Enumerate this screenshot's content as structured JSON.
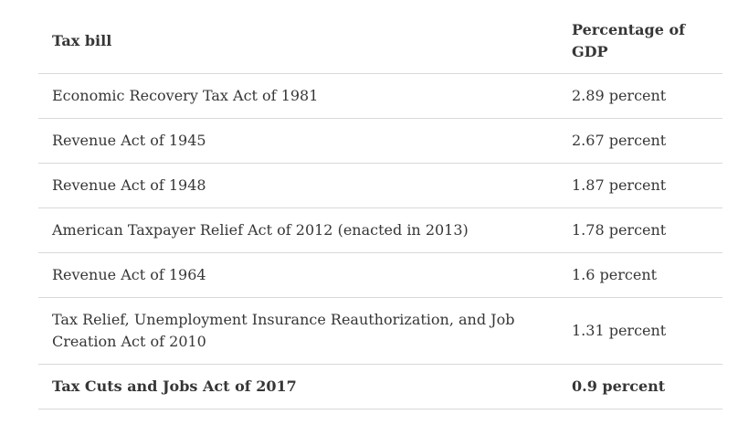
{
  "table": {
    "columns": [
      "Tax bill",
      "Percentage of GDP"
    ],
    "rows": [
      {
        "bill": "Economic Recovery Tax Act of 1981",
        "pct": "2.89 percent",
        "bold": false
      },
      {
        "bill": "Revenue Act of 1945",
        "pct": "2.67 percent",
        "bold": false
      },
      {
        "bill": "Revenue Act of 1948",
        "pct": "1.87 percent",
        "bold": false
      },
      {
        "bill": "American Taxpayer Relief Act of 2012 (enacted in 2013)",
        "pct": "1.78 percent",
        "bold": false
      },
      {
        "bill": "Revenue Act of 1964",
        "pct": "1.6 percent",
        "bold": false
      },
      {
        "bill": "Tax Relief, Unemployment Insurance Reauthorization, and Job Creation Act of 2010",
        "pct": "1.31 percent",
        "bold": false
      },
      {
        "bill": "Tax Cuts and Jobs Act of 2017",
        "pct": "0.9 percent",
        "bold": true
      }
    ],
    "colors": {
      "text": "#363636",
      "border": "#d9d9d9",
      "background": "#ffffff"
    }
  },
  "chart_data": {
    "type": "table",
    "title": "",
    "columns": [
      "Tax bill",
      "Percentage of GDP"
    ],
    "categories": [
      "Economic Recovery Tax Act of 1981",
      "Revenue Act of 1945",
      "Revenue Act of 1948",
      "American Taxpayer Relief Act of 2012 (enacted in 2013)",
      "Revenue Act of 1964",
      "Tax Relief, Unemployment Insurance Reauthorization, and Job Creation Act of 2010",
      "Tax Cuts and Jobs Act of 2017"
    ],
    "values": [
      2.89,
      2.67,
      1.87,
      1.78,
      1.6,
      1.31,
      0.9
    ],
    "value_labels": [
      "2.89 percent",
      "2.67 percent",
      "1.87 percent",
      "1.78 percent",
      "1.6 percent",
      "1.31 percent",
      "0.9 percent"
    ],
    "units": "percent of GDP",
    "emphasized_row": "Tax Cuts and Jobs Act of 2017"
  }
}
